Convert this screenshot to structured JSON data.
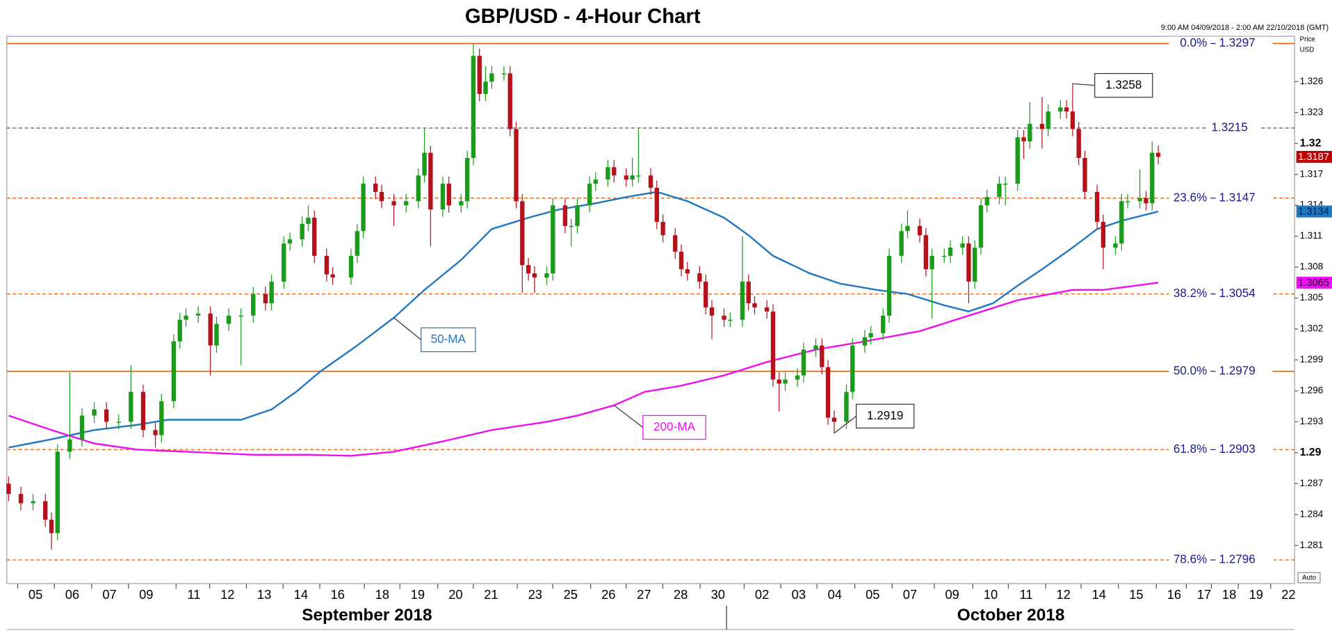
{
  "chart_data": {
    "type": "candlestick",
    "title": "GBP/USD - 4-Hour Chart",
    "subtitle": "9:00 AM 04/09/2018 - 2:00 AM 22/10/2018 (GMT)",
    "y_axis_label": [
      "Price",
      "USD"
    ],
    "auto_label": "Auto",
    "up_color": "#1a9b1a",
    "down_color": "#b5121b",
    "x": [
      0,
      2,
      4,
      6,
      7,
      8,
      10,
      12,
      14,
      16,
      18,
      20,
      22,
      24,
      25,
      27,
      28,
      29,
      31,
      33,
      34,
      36,
      38,
      40,
      42,
      43,
      45,
      46,
      48,
      49,
      50,
      52,
      53,
      56,
      57,
      58,
      60,
      61,
      63,
      65,
      67,
      68,
      69,
      71,
      72,
      74,
      75,
      76,
      77,
      78,
      79,
      81,
      82,
      83,
      84,
      85,
      86,
      88,
      89,
      91,
      92,
      93,
      95,
      96,
      98,
      99,
      101,
      102,
      103,
      105,
      106,
      107,
      109,
      110,
      111,
      113,
      114,
      115,
      117,
      118,
      120,
      121,
      122,
      124,
      125,
      126,
      127,
      129,
      130,
      132,
      133,
      134,
      135,
      137,
      138,
      140,
      141,
      143,
      144,
      146,
      147,
      149,
      150,
      151,
      153,
      154,
      156,
      157,
      158,
      159,
      160,
      162,
      163,
      165,
      166,
      167,
      169,
      170,
      172,
      173,
      174,
      175,
      176,
      178,
      179,
      181,
      182,
      183,
      185,
      186,
      187,
      188
    ],
    "open": [
      1.287,
      1.286,
      1.2851,
      1.2853,
      1.2835,
      1.2822,
      1.2901,
      1.2913,
      1.2936,
      1.2942,
      1.293,
      1.293,
      1.2959,
      1.2922,
      1.2917,
      1.295,
      1.3008,
      1.3029,
      1.3033,
      1.3035,
      1.3004,
      1.3025,
      1.3033,
      1.3033,
      1.3054,
      1.3045,
      1.3066,
      1.3103,
      1.3107,
      1.3122,
      1.3128,
      1.3091,
      1.3073,
      1.307,
      1.3091,
      1.3115,
      1.3161,
      1.3153,
      1.3144,
      1.314,
      1.3144,
      1.3169,
      1.3191,
      1.3136,
      1.3161,
      1.314,
      1.3144,
      1.3186,
      1.3285,
      1.3248,
      1.326,
      1.3268,
      1.3268,
      1.3214,
      1.3144,
      1.3082,
      1.3074,
      1.307,
      1.3074,
      1.314,
      1.312,
      1.312,
      1.314,
      1.3161,
      1.3165,
      1.3177,
      1.3169,
      1.3165,
      1.3169,
      1.3169,
      1.3157,
      1.3124,
      1.3111,
      1.3095,
      1.3078,
      1.3074,
      1.3066,
      1.3041,
      1.3033,
      1.3029,
      1.3029,
      1.3066,
      1.3045,
      1.3041,
      1.3037,
      1.2971,
      1.2967,
      1.2971,
      1.2975,
      1.3,
      1.3004,
      1.2983,
      1.2934,
      1.293,
      1.2959,
      1.3004,
      1.3012,
      1.3016,
      1.3033,
      1.3091,
      1.3115,
      1.312,
      1.3111,
      1.3078,
      1.3091,
      1.3091,
      1.3099,
      1.3103,
      1.3066,
      1.3099,
      1.314,
      1.3148,
      1.3161,
      1.3161,
      1.3206,
      1.3202,
      1.3219,
      1.3214,
      1.3231,
      1.3235,
      1.3231,
      1.3214,
      1.3186,
      1.3153,
      1.3124,
      1.3099,
      1.3103,
      1.3144,
      1.3144,
      1.3147,
      1.3142,
      1.3191
    ],
    "high": [
      1.2877,
      1.2867,
      1.286,
      1.286,
      1.2842,
      1.2908,
      1.2978,
      1.2943,
      1.2949,
      1.2949,
      1.2937,
      1.2985,
      1.2966,
      1.2929,
      1.2957,
      1.3015,
      1.3036,
      1.304,
      1.3042,
      1.3042,
      1.3032,
      1.304,
      1.304,
      1.3061,
      1.3061,
      1.3073,
      1.311,
      1.3114,
      1.3129,
      1.314,
      1.3135,
      1.3098,
      1.308,
      1.3098,
      1.3122,
      1.3168,
      1.3168,
      1.316,
      1.3151,
      1.3151,
      1.3176,
      1.3215,
      1.3198,
      1.3168,
      1.3168,
      1.3151,
      1.3193,
      1.3297,
      1.3292,
      1.3275,
      1.3275,
      1.3275,
      1.3275,
      1.3221,
      1.3151,
      1.3089,
      1.3081,
      1.3081,
      1.3147,
      1.3147,
      1.3127,
      1.3147,
      1.3168,
      1.3172,
      1.3184,
      1.3184,
      1.3176,
      1.3186,
      1.3214,
      1.3176,
      1.3164,
      1.3131,
      1.3118,
      1.3102,
      1.3085,
      1.3081,
      1.3073,
      1.3048,
      1.304,
      1.3036,
      1.311,
      1.3073,
      1.3052,
      1.3048,
      1.3044,
      1.2978,
      1.2978,
      1.2982,
      1.3007,
      1.3011,
      1.3011,
      1.299,
      1.2941,
      1.2966,
      1.3011,
      1.3019,
      1.3023,
      1.304,
      1.3098,
      1.3122,
      1.3135,
      1.3127,
      1.3118,
      1.3098,
      1.3098,
      1.3106,
      1.311,
      1.311,
      1.3106,
      1.3147,
      1.3155,
      1.3168,
      1.3168,
      1.3213,
      1.3213,
      1.324,
      1.3245,
      1.3238,
      1.3242,
      1.3242,
      1.3258,
      1.3221,
      1.3193,
      1.316,
      1.3131,
      1.311,
      1.3151,
      1.3151,
      1.3175,
      1.3154,
      1.3202,
      1.3198
    ],
    "low": [
      1.2853,
      1.2844,
      1.2844,
      1.2828,
      1.2806,
      1.2815,
      1.2894,
      1.2906,
      1.2929,
      1.2923,
      1.2923,
      1.2923,
      1.2915,
      1.2905,
      1.291,
      1.2943,
      1.3001,
      1.3022,
      1.3026,
      1.2975,
      1.2997,
      1.3018,
      1.2985,
      1.3026,
      1.3038,
      1.3038,
      1.3059,
      1.3096,
      1.31,
      1.3115,
      1.3084,
      1.3066,
      1.3063,
      1.3063,
      1.3084,
      1.3108,
      1.3146,
      1.3137,
      1.312,
      1.3133,
      1.3137,
      1.3162,
      1.31,
      1.3129,
      1.3133,
      1.3133,
      1.3137,
      1.3179,
      1.3241,
      1.3241,
      1.3253,
      1.3261,
      1.3207,
      1.3137,
      1.3055,
      1.3067,
      1.3055,
      1.3063,
      1.3067,
      1.3113,
      1.31,
      1.3113,
      1.3133,
      1.3154,
      1.3158,
      1.3162,
      1.3158,
      1.3158,
      1.3162,
      1.315,
      1.3117,
      1.3104,
      1.3088,
      1.3071,
      1.3067,
      1.3059,
      1.3034,
      1.301,
      1.3022,
      1.3022,
      1.3022,
      1.3038,
      1.3034,
      1.303,
      1.2964,
      1.294,
      1.296,
      1.2964,
      1.2968,
      1.2993,
      1.2976,
      1.2927,
      1.2919,
      1.2923,
      1.2952,
      1.2997,
      1.3005,
      1.3009,
      1.3026,
      1.3084,
      1.3108,
      1.3104,
      1.3071,
      1.303,
      1.3084,
      1.3084,
      1.3092,
      1.3045,
      1.3059,
      1.3092,
      1.3133,
      1.3141,
      1.314,
      1.3154,
      1.3185,
      1.3195,
      1.3195,
      1.3207,
      1.3224,
      1.3224,
      1.3207,
      1.3179,
      1.3146,
      1.3117,
      1.3078,
      1.3092,
      1.3096,
      1.3137,
      1.3137,
      1.3135,
      1.3135,
      1.318
    ],
    "close": [
      1.286,
      1.2851,
      1.2853,
      1.2835,
      1.2822,
      1.2901,
      1.2913,
      1.2936,
      1.2942,
      1.293,
      1.293,
      1.2959,
      1.2922,
      1.2917,
      1.295,
      1.3008,
      1.3029,
      1.3033,
      1.3035,
      1.3004,
      1.3025,
      1.3033,
      1.3033,
      1.3054,
      1.3045,
      1.3066,
      1.3103,
      1.3107,
      1.3122,
      1.3128,
      1.3091,
      1.3073,
      1.307,
      1.3091,
      1.3115,
      1.3161,
      1.3153,
      1.3144,
      1.314,
      1.3144,
      1.3169,
      1.3191,
      1.3136,
      1.3161,
      1.314,
      1.3144,
      1.3186,
      1.3285,
      1.3248,
      1.326,
      1.3268,
      1.3268,
      1.3214,
      1.3144,
      1.3082,
      1.3074,
      1.307,
      1.3074,
      1.314,
      1.312,
      1.312,
      1.314,
      1.3161,
      1.3165,
      1.3177,
      1.3169,
      1.3165,
      1.3169,
      1.3169,
      1.3157,
      1.3124,
      1.3111,
      1.3095,
      1.3078,
      1.3074,
      1.3066,
      1.3041,
      1.3033,
      1.3029,
      1.3029,
      1.3066,
      1.3045,
      1.3041,
      1.3037,
      1.2971,
      1.2967,
      1.2971,
      1.2975,
      1.3,
      1.3004,
      1.2983,
      1.2934,
      1.293,
      1.2959,
      1.3004,
      1.3012,
      1.3016,
      1.3033,
      1.3091,
      1.3115,
      1.312,
      1.3111,
      1.3078,
      1.3091,
      1.3091,
      1.3099,
      1.3103,
      1.3066,
      1.3099,
      1.314,
      1.3148,
      1.3161,
      1.3161,
      1.3206,
      1.3202,
      1.3219,
      1.3214,
      1.3231,
      1.3235,
      1.3231,
      1.3214,
      1.3186,
      1.3153,
      1.3124,
      1.3099,
      1.3103,
      1.3144,
      1.3144,
      1.3147,
      1.3142,
      1.3191,
      1.3187
    ],
    "overlays": [
      {
        "name": "50-MA",
        "color": "#1f78c1",
        "x": [
          0,
          7,
          14,
          21,
          26,
          32,
          38,
          43,
          47,
          51,
          57,
          63,
          68,
          74,
          79,
          85,
          90,
          96,
          101,
          106,
          111,
          117,
          121,
          125,
          131,
          136,
          142,
          147,
          153,
          157,
          161,
          165,
          169,
          174,
          178,
          182,
          188
        ],
        "values": [
          1.2905,
          1.2913,
          1.2922,
          1.2927,
          1.2932,
          1.2932,
          1.2932,
          1.2942,
          1.2959,
          1.2979,
          1.3004,
          1.3031,
          1.3058,
          1.3087,
          1.3117,
          1.3128,
          1.3136,
          1.3142,
          1.3148,
          1.3153,
          1.3144,
          1.3128,
          1.3111,
          1.3091,
          1.3074,
          1.3064,
          1.3058,
          1.3054,
          1.3043,
          1.3037,
          1.3045,
          1.3062,
          1.3078,
          1.3099,
          1.3117,
          1.3125,
          1.3134
        ]
      },
      {
        "name": "200-MA",
        "color": "#ee10ee",
        "x": [
          0,
          7,
          14,
          21,
          29,
          40,
          49,
          56,
          63,
          71,
          79,
          88,
          93,
          99,
          104,
          110,
          117,
          124,
          132,
          140,
          149,
          157,
          165,
          174,
          179,
          188
        ],
        "values": [
          1.2936,
          1.2922,
          1.2909,
          1.2903,
          1.2901,
          1.2898,
          1.2898,
          1.2897,
          1.2901,
          1.2911,
          1.2922,
          1.293,
          1.2936,
          1.2946,
          1.2959,
          1.2965,
          1.2975,
          1.2988,
          1.3,
          1.3008,
          1.3018,
          1.3033,
          1.3048,
          1.3058,
          1.3058,
          1.3065
        ]
      }
    ],
    "levels": [
      {
        "label": "0.0%",
        "value": 1.3297,
        "color": "#f07020",
        "dashed": false
      },
      {
        "value": 1.3215,
        "color": "#777777",
        "dashed": true
      },
      {
        "label": "23.6%",
        "value": 1.3147,
        "color": "#f07020",
        "dashed": true
      },
      {
        "label": "38.2%",
        "value": 1.3054,
        "color": "#f07020",
        "dashed": true
      },
      {
        "label": "50.0%",
        "value": 1.2979,
        "color": "#f07020",
        "dashed": false
      },
      {
        "label": "61.8%",
        "value": 1.2903,
        "color": "#f07020",
        "dashed": true
      },
      {
        "label": "78.6%",
        "value": 1.2796,
        "color": "#f07020",
        "dashed": true
      }
    ],
    "callouts": [
      {
        "value": 1.3258,
        "x": 174
      },
      {
        "value": 1.2919,
        "x": 135
      }
    ],
    "price_tags": [
      {
        "value": 1.3187,
        "color": "#c00000",
        "text_color": "#ffffff"
      },
      {
        "value": 1.3134,
        "color": "#1f78c1",
        "text_color": "#0a1a4a"
      },
      {
        "value": 1.3065,
        "color": "#ee10ee",
        "text_color": "#1a0a2a"
      }
    ],
    "xlim": [
      -0.3,
      210.3
    ],
    "ylim": [
      1.2773,
      1.3304
    ],
    "yticks": [
      1.281,
      1.284,
      1.287,
      1.29,
      1.293,
      1.296,
      1.299,
      1.302,
      1.305,
      1.308,
      1.311,
      1.314,
      1.317,
      1.32,
      1.323,
      1.326
    ],
    "xticks": [
      {
        "value": 4.4,
        "label": "05"
      },
      {
        "value": 10.4,
        "label": "06"
      },
      {
        "value": 16.5,
        "label": "07"
      },
      {
        "value": 22.5,
        "label": "09"
      },
      {
        "value": 30.3,
        "label": "11"
      },
      {
        "value": 35.8,
        "label": "12"
      },
      {
        "value": 41.8,
        "label": "13"
      },
      {
        "value": 47.8,
        "label": "14"
      },
      {
        "value": 53.8,
        "label": "16"
      },
      {
        "value": 61.1,
        "label": "18"
      },
      {
        "value": 66.9,
        "label": "19"
      },
      {
        "value": 73.1,
        "label": "20"
      },
      {
        "value": 78.9,
        "label": "21"
      },
      {
        "value": 86.1,
        "label": "23"
      },
      {
        "value": 91.9,
        "label": "25"
      },
      {
        "value": 98.1,
        "label": "26"
      },
      {
        "value": 103.9,
        "label": "27"
      },
      {
        "value": 109.9,
        "label": "28"
      },
      {
        "value": 116,
        "label": "30"
      },
      {
        "value": 123.2,
        "label": "02"
      },
      {
        "value": 129.2,
        "label": "03"
      },
      {
        "value": 135.1,
        "label": "04"
      },
      {
        "value": 141.3,
        "label": "05"
      },
      {
        "value": 147.4,
        "label": "07"
      },
      {
        "value": 154.3,
        "label": "09"
      },
      {
        "value": 160.6,
        "label": "10"
      },
      {
        "value": 166.4,
        "label": "11"
      },
      {
        "value": 172.5,
        "label": "12"
      },
      {
        "value": 178.3,
        "label": "14"
      },
      {
        "value": 184.4,
        "label": "15"
      },
      {
        "value": 190.6,
        "label": "16"
      },
      {
        "value": 195.5,
        "label": "17"
      },
      {
        "value": 199.6,
        "label": "18"
      },
      {
        "value": 204,
        "label": "19"
      },
      {
        "value": 209.3,
        "label": "22"
      }
    ],
    "month_labels": [
      {
        "value": 58.6,
        "label": "September 2018"
      },
      {
        "value": 163.9,
        "label": "October 2018"
      }
    ],
    "month_break": 117.4
  }
}
